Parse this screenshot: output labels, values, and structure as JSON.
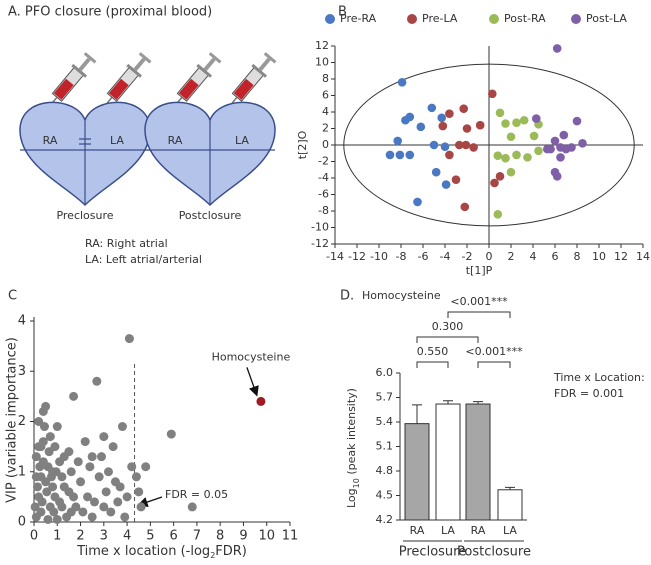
{
  "panel_a": {
    "title": "A. PFO closure (proximal blood)",
    "hearts": [
      {
        "labels": [
          "RA",
          "LA"
        ],
        "caption": "Preclosure"
      },
      {
        "labels": [
          "RA",
          "LA"
        ],
        "caption": "Postclosure"
      }
    ],
    "legend": [
      "RA: Right atrial",
      "LA: Left atrial/arterial"
    ]
  },
  "chart_data": [
    {
      "type": "scatter",
      "panel_label": "B",
      "x_label": "t[1]P",
      "y_label": "t[2]O",
      "xlim": [
        -14,
        14
      ],
      "xticks": [
        -14,
        -12,
        -10,
        -8,
        -6,
        -4,
        -2,
        0,
        2,
        4,
        6,
        8,
        10,
        12,
        14
      ],
      "ylim": [
        -12,
        12
      ],
      "yticks": [
        -12,
        -10,
        -8,
        -6,
        -4,
        -2,
        0,
        2,
        4,
        6,
        8,
        10,
        12
      ],
      "legend": "top",
      "series": [
        {
          "name": "Pre-RA",
          "color": "#4a78c2",
          "x": [
            -7.9,
            -7.2,
            -7.6,
            -8.3,
            -9,
            -8.1,
            -7.2,
            -6.2,
            -5.2,
            -5.0,
            -4.0,
            -4.3,
            -4.8,
            -3.9,
            -6.5
          ],
          "values": [
            7.6,
            3.4,
            3.0,
            0.5,
            -1.2,
            -1.2,
            -1.2,
            2.2,
            4.5,
            0,
            -0.2,
            3.3,
            -3.3,
            -4.8,
            -6.9
          ]
        },
        {
          "name": "Pre-LA",
          "color": "#a84545",
          "x": [
            -2.3,
            -4.2,
            -3.6,
            -2.0,
            -2.7,
            -2.1,
            -3.6,
            -1.4,
            -0.8,
            -3.0,
            -2.2,
            0.3,
            1.0,
            0.5
          ],
          "values": [
            4.4,
            2.3,
            3.8,
            2.0,
            0,
            0,
            -1.2,
            -0.3,
            2.4,
            -4.2,
            -7.5,
            6.2,
            -3.8,
            -4.6
          ]
        },
        {
          "name": "Post-RA",
          "color": "#9bbb59",
          "x": [
            1.0,
            1.5,
            2.5,
            2.0,
            3.2,
            4.5,
            0.8,
            1.5,
            2.5,
            3.5,
            4.5,
            2.0,
            0.8,
            4.1
          ],
          "values": [
            3.9,
            2.6,
            2.7,
            1.0,
            3.0,
            2.5,
            -1.3,
            -1.6,
            -1.2,
            -1.5,
            -0.7,
            -3.3,
            -8.4,
            1.1
          ]
        },
        {
          "name": "Post-LA",
          "color": "#7f5fa8",
          "x": [
            4.3,
            6.2,
            6.8,
            6.0,
            6.5,
            7.0,
            7.5,
            8.5,
            8.0,
            5.6,
            5.3,
            6.5,
            6.0,
            6.2
          ],
          "values": [
            3.2,
            11.7,
            1.2,
            0.5,
            -0.3,
            -0.5,
            -0.3,
            0.2,
            2.9,
            -0.5,
            -0.5,
            -1.5,
            -3.3,
            -3.8
          ]
        }
      ]
    },
    {
      "type": "scatter",
      "panel_label": "C",
      "x_label": [
        "Time x location (-log",
        "2",
        "FDR)"
      ],
      "y_label": "VIP (variable importance)",
      "xlim": [
        0,
        11
      ],
      "xticks": [
        0,
        1,
        2,
        3,
        4,
        5,
        6,
        7,
        8,
        9,
        10,
        11
      ],
      "ylim": [
        0,
        4
      ],
      "yticks": [
        0,
        1,
        2,
        3,
        4
      ],
      "threshold": 4.32,
      "threshold_label": "FDR = 0.05",
      "series": [
        {
          "color": "#808080",
          "x": [
            0.1,
            0.2,
            0.3,
            0.1,
            0.4,
            0.2,
            0.5,
            0.4,
            0.6,
            0.7,
            0.8,
            0.9,
            1.0,
            1.1,
            1.2,
            1.3,
            1.4,
            1.5,
            1.6,
            1.7,
            1.8,
            1.9,
            2.0,
            2.1,
            2.2,
            2.3,
            2.4,
            2.5,
            2.6,
            2.7,
            2.8,
            2.9,
            3.0,
            3.1,
            3.2,
            3.3,
            3.4,
            3.5,
            3.6,
            3.8,
            3.9,
            4.0,
            4.1,
            4.2,
            4.4,
            4.5,
            4.6,
            4.8,
            5.9,
            6.8,
            0.05,
            0.15,
            0.25,
            0.35,
            0.45,
            0.55,
            0.65,
            0.75,
            0.85,
            0.95,
            0.3,
            0.5,
            0.7,
            0.9,
            1.1,
            1.3,
            1.5,
            1.7,
            0.2,
            0.6,
            1.0,
            0.4,
            0.8,
            1.2,
            1.6,
            0.1,
            0.3,
            2.5,
            3.7,
            3.0
          ],
          "values": [
            0.1,
            0.5,
            0.9,
            1.3,
            1.6,
            2.0,
            2.3,
            2.2,
            1.1,
            0.3,
            0.7,
            1.5,
            1.9,
            0.4,
            0.9,
            1.3,
            0.1,
            0.6,
            1.0,
            2.5,
            0.3,
            1.2,
            0.8,
            0.2,
            1.6,
            0.5,
            1.1,
            0.1,
            0.4,
            2.8,
            0.9,
            1.3,
            0.3,
            0.6,
            1.0,
            0.2,
            1.5,
            0.8,
            0.4,
            1.9,
            0.1,
            0.5,
            3.65,
            1.1,
            0.9,
            0.6,
            0.3,
            1.1,
            1.75,
            0.3,
            0.3,
            0.7,
            1.1,
            0.4,
            1.9,
            0.6,
            1.4,
            0.9,
            0.2,
            1.0,
            0.2,
            0.8,
            1.7,
            0.5,
            1.2,
            0.7,
            1.4,
            0.5,
            1.5,
            0.05,
            0.05,
            1.2,
            1.0,
            0.3,
            0.2,
            0.9,
            1.5,
            1.3,
            0.7,
            1.7
          ]
        },
        {
          "name": "Homocysteine",
          "color": "#a01c24",
          "x": [
            9.75
          ],
          "values": [
            2.4
          ]
        }
      ]
    },
    {
      "type": "bar",
      "panel_label": "D.",
      "title": "Homocysteine",
      "y_label": [
        "Log",
        "10",
        " (peak intensity)"
      ],
      "categories": [
        "RA",
        "LA",
        "RA",
        "LA"
      ],
      "groups": [
        "Preclosure",
        "Postclosure"
      ],
      "values": [
        5.38,
        5.62,
        5.62,
        4.57
      ],
      "errors": [
        0.23,
        0.04,
        0.03,
        0.03
      ],
      "colors": [
        "#a6a6a6",
        "#ffffff",
        "#a6a6a6",
        "#ffffff"
      ],
      "ylim": [
        4.2,
        6.0
      ],
      "yticks": [
        {
          "value": 4.2,
          "label": "4.2"
        },
        {
          "value": 4.5,
          "label": "4.5"
        },
        {
          "value": 4.8,
          "label": "4.8"
        },
        {
          "value": 5.1,
          "label": "5.1"
        },
        {
          "value": 5.4,
          "label": "5.4"
        },
        {
          "value": 5.7,
          "label": "5.7"
        },
        {
          "value": 6.0,
          "label": "6.0"
        }
      ],
      "comparisons": [
        "0.550",
        "0.300",
        "<0.001***",
        "<0.001***"
      ],
      "annotation": [
        "Time x Location:",
        "FDR = 0.001"
      ]
    }
  ]
}
